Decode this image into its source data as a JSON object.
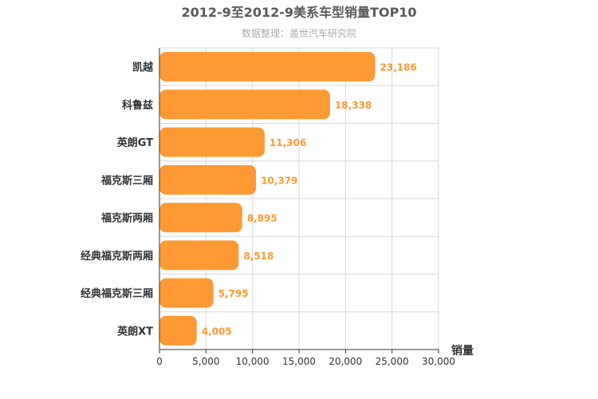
{
  "chart_data": {
    "type": "bar",
    "orientation": "horizontal",
    "title": "2012-9至2012-9美系车型销量TOP10",
    "subtitle": "数据整理：盖世汽车研究院",
    "xlabel": "销量",
    "ylabel": "",
    "categories": [
      "凯越",
      "科鲁兹",
      "英朗GT",
      "福克斯三厢",
      "福克斯两厢",
      "经典福克斯两厢",
      "经典福克斯三厢",
      "英朗XT"
    ],
    "values": [
      23186,
      18338,
      11306,
      10379,
      8895,
      8518,
      5795,
      4005
    ],
    "value_labels": [
      "23,186",
      "18,338",
      "11,306",
      "10,379",
      "8,895",
      "8,518",
      "5,795",
      "4,005"
    ],
    "xlim": [
      0,
      30000
    ],
    "x_ticks": [
      0,
      5000,
      10000,
      15000,
      20000,
      25000,
      30000
    ],
    "x_tick_labels": [
      "0",
      "5,000",
      "10,000",
      "15,000",
      "20,000",
      "25,000",
      "30,000"
    ],
    "grid": true,
    "bar_color": "#ff9933",
    "label_color": "#ff9933"
  }
}
